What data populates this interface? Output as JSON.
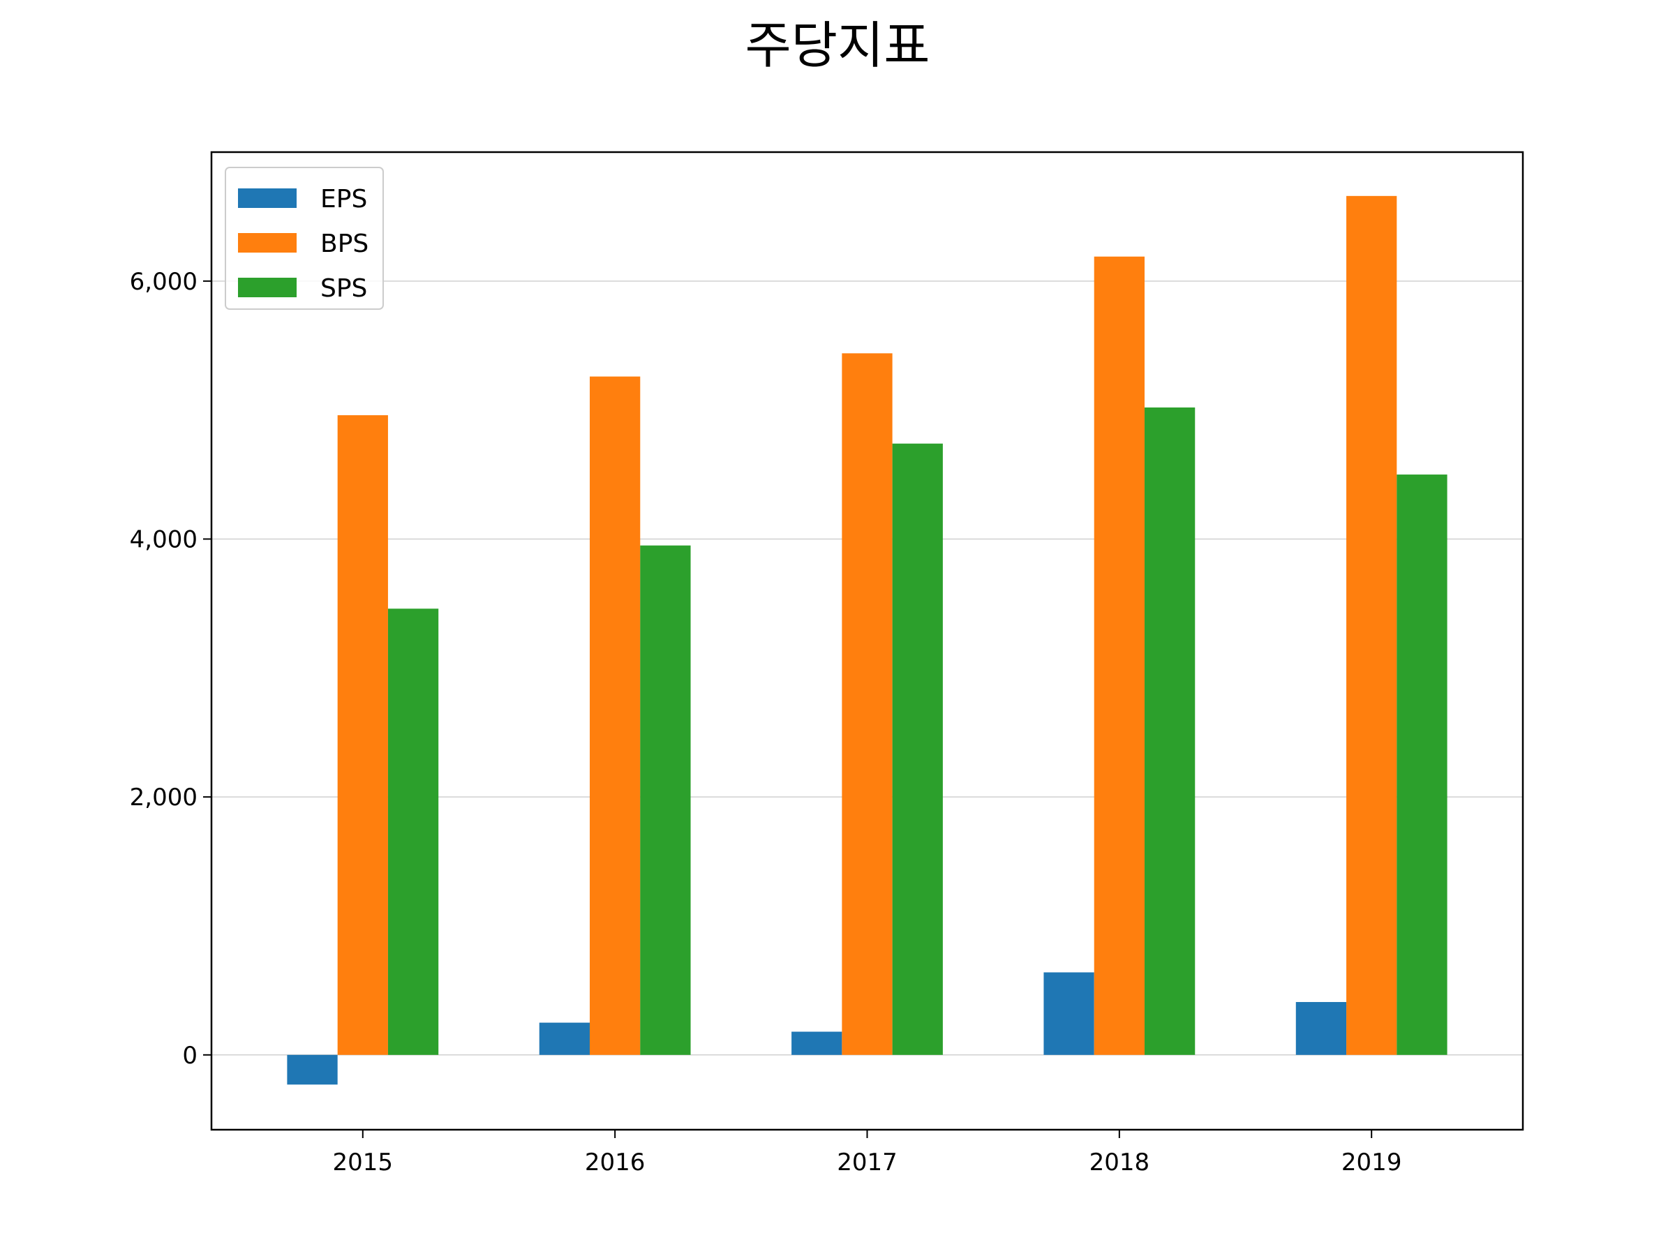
{
  "chart_data": {
    "type": "bar",
    "title": "주당지표",
    "xlabel": "",
    "ylabel": "",
    "categories": [
      "2015",
      "2016",
      "2017",
      "2018",
      "2019"
    ],
    "series": [
      {
        "name": "EPS",
        "color": "#1f77b4",
        "values": [
          -230,
          250,
          180,
          640,
          410
        ]
      },
      {
        "name": "BPS",
        "color": "#ff7f0e",
        "values": [
          4960,
          5260,
          5440,
          6190,
          6660
        ]
      },
      {
        "name": "SPS",
        "color": "#2ca02c",
        "values": [
          3460,
          3950,
          4740,
          5020,
          4500
        ]
      }
    ],
    "ylim": [
      -580,
      7000
    ],
    "yticks": [
      0,
      2000,
      4000,
      6000
    ],
    "ytick_labels": [
      "0",
      "2,000",
      "4,000",
      "6,000"
    ],
    "grid": "horizontal",
    "legend_position": "top-left"
  }
}
